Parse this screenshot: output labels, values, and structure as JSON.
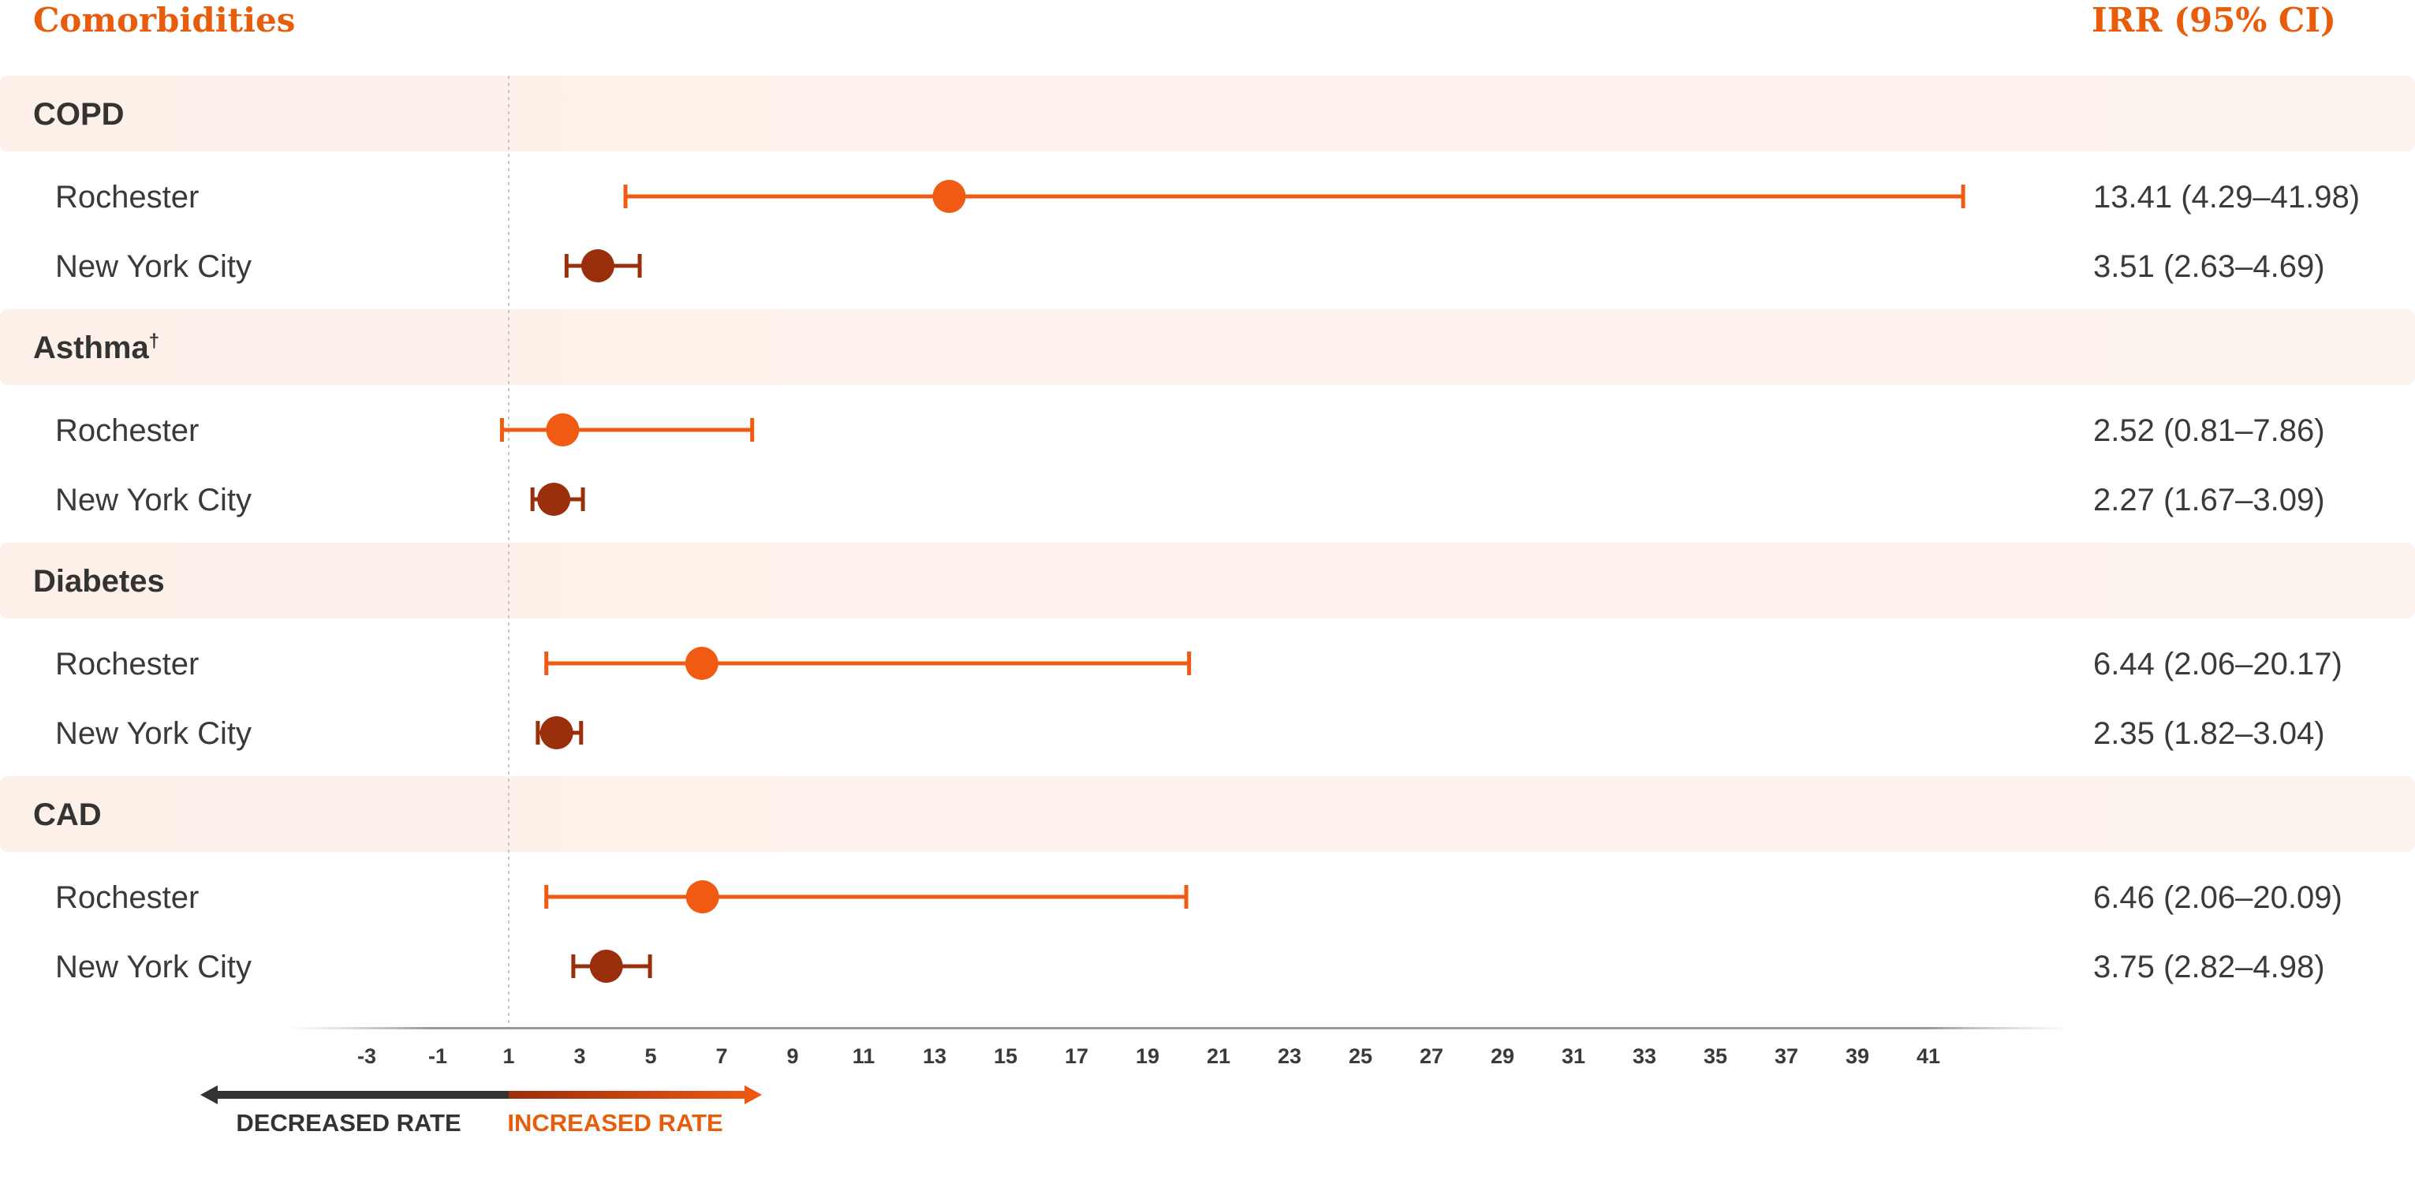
{
  "header": {
    "left_title": "Comorbidities",
    "right_title": "IRR (95% CI)"
  },
  "direction": {
    "decreased_label": "DECREASED RATE",
    "increased_label": "INCREASED RATE"
  },
  "colors": {
    "accent": "#e85d0c",
    "rochester": "#f05a12",
    "nyc": "#9a2f0c",
    "band": "#fdf0e9",
    "axis": "#999999",
    "text": "#3a3a3a"
  },
  "chart_data": {
    "type": "forest",
    "xlim": [
      -4,
      43
    ],
    "xticks": [
      "-3",
      "-1",
      "1",
      "3",
      "5",
      "7",
      "9",
      "11",
      "13",
      "15",
      "17",
      "19",
      "21",
      "23",
      "25",
      "27",
      "29",
      "31",
      "33",
      "35",
      "37",
      "39",
      "41"
    ],
    "reference_x": 1,
    "groups": [
      {
        "name": "COPD",
        "sup": "",
        "rows": [
          {
            "label": "Rochester",
            "series": "rochester",
            "irr": 13.41,
            "lo": 4.29,
            "hi": 41.98,
            "text": "13.41 (4.29–41.98)"
          },
          {
            "label": "New York City",
            "series": "nyc",
            "irr": 3.51,
            "lo": 2.63,
            "hi": 4.69,
            "text": "3.51 (2.63–4.69)"
          }
        ]
      },
      {
        "name": "Asthma",
        "sup": "†",
        "rows": [
          {
            "label": "Rochester",
            "series": "rochester",
            "irr": 2.52,
            "lo": 0.81,
            "hi": 7.86,
            "text": "2.52 (0.81–7.86)"
          },
          {
            "label": "New York City",
            "series": "nyc",
            "irr": 2.27,
            "lo": 1.67,
            "hi": 3.09,
            "text": "2.27 (1.67–3.09)"
          }
        ]
      },
      {
        "name": "Diabetes",
        "sup": "",
        "rows": [
          {
            "label": "Rochester",
            "series": "rochester",
            "irr": 6.44,
            "lo": 2.06,
            "hi": 20.17,
            "text": "6.44 (2.06–20.17)"
          },
          {
            "label": "New York City",
            "series": "nyc",
            "irr": 2.35,
            "lo": 1.82,
            "hi": 3.04,
            "text": "2.35 (1.82–3.04)"
          }
        ]
      },
      {
        "name": "CAD",
        "sup": "",
        "rows": [
          {
            "label": "Rochester",
            "series": "rochester",
            "irr": 6.46,
            "lo": 2.06,
            "hi": 20.09,
            "text": "6.46 (2.06–20.09)"
          },
          {
            "label": "New York City",
            "series": "nyc",
            "irr": 3.75,
            "lo": 2.82,
            "hi": 4.98,
            "text": "3.75 (2.82–4.98)"
          }
        ]
      }
    ]
  }
}
